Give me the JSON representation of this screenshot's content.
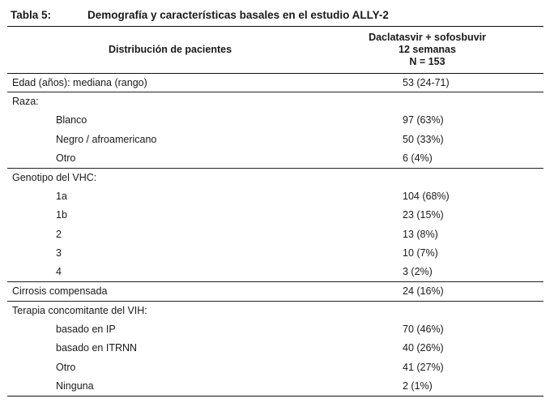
{
  "table": {
    "caption_label": "Tabla 5:",
    "caption_title": "Demografía y características basales en el estudio ALLY-2",
    "header": {
      "left": "Distribución de pacientes",
      "right_line1": "Daclatasvir + sofosbuvir",
      "right_line2": "12 semanas",
      "right_line3": "N = 153"
    },
    "rows": [
      {
        "label": "Edad (años): mediana (rango)",
        "value": "53 (24-71)"
      },
      {
        "label": "Raza:",
        "value": ""
      },
      {
        "label": "Blanco",
        "value": "97 (63%)"
      },
      {
        "label": "Negro / afroamericano",
        "value": "50 (33%)"
      },
      {
        "label": "Otro",
        "value": "6 (4%)"
      },
      {
        "label": "Genotipo del VHC:",
        "value": ""
      },
      {
        "label": "1a",
        "value": "104 (68%)"
      },
      {
        "label": "1b",
        "value": "23 (15%)"
      },
      {
        "label": "2",
        "value": "13 (8%)"
      },
      {
        "label": "3",
        "value": "10 (7%)"
      },
      {
        "label": "4",
        "value": "3 (2%)"
      },
      {
        "label": "Cirrosis compensada",
        "value": "24 (16%)"
      },
      {
        "label": "Terapia concomitante del VIH:",
        "value": ""
      },
      {
        "label": "basado en IP",
        "value": "70 (46%)"
      },
      {
        "label": "basado en ITRNN",
        "value": "40 (26%)"
      },
      {
        "label": "Otro",
        "value": "41 (27%)"
      },
      {
        "label": "Ninguna",
        "value": "2 (1%)"
      }
    ]
  }
}
